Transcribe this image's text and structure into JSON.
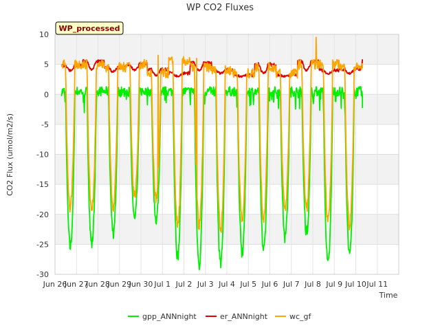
{
  "chart_data": {
    "type": "line",
    "title": "WP CO2 Fluxes",
    "xlabel": "Time",
    "ylabel": "CO2 Flux (umol/m2/s)",
    "badge": "WP_processed",
    "grid": true,
    "legend_position": "bottom-center",
    "xlim": [
      0,
      16
    ],
    "ylim": [
      -30,
      10
    ],
    "yticks": [
      10,
      5,
      0,
      -5,
      -10,
      -15,
      -20,
      -25,
      -30
    ],
    "xticks": [
      {
        "value": 0,
        "label": "Jun 26"
      },
      {
        "value": 1,
        "label": "Jun 27"
      },
      {
        "value": 2,
        "label": "Jun 28"
      },
      {
        "value": 3,
        "label": "Jun 29"
      },
      {
        "value": 4,
        "label": "Jun 30"
      },
      {
        "value": 5,
        "label": "Jul 1"
      },
      {
        "value": 6,
        "label": "Jul 2"
      },
      {
        "value": 7,
        "label": "Jul 3"
      },
      {
        "value": 8,
        "label": "Jul 4"
      },
      {
        "value": 9,
        "label": "Jul 5"
      },
      {
        "value": 10,
        "label": "Jul 6"
      },
      {
        "value": 11,
        "label": "Jul 7"
      },
      {
        "value": 12,
        "label": "Jul 8"
      },
      {
        "value": 13,
        "label": "Jul 9"
      },
      {
        "value": 14,
        "label": "Jul 10"
      },
      {
        "value": 15,
        "label": "Jul 11"
      }
    ],
    "day_starts": [
      0.3,
      1.3,
      2.3,
      3.3,
      4.3,
      5.3,
      6.3,
      7.3,
      8.3,
      9.3,
      10.3,
      11.3,
      12.3,
      13.3,
      14.3
    ],
    "series": [
      {
        "name": "gpp_ANNnight",
        "color": "#00ee00",
        "night_values": [
          0.5,
          0.5,
          0.5,
          0.5,
          0.5,
          0.5,
          0.5,
          0.5,
          0.5,
          0.5,
          0.5,
          0.5,
          0.5,
          0.5,
          -0.5
        ],
        "daily_minimums": [
          -25.5,
          -25.0,
          -23.0,
          -21.0,
          -21.0,
          -27.0,
          -28.5,
          -28.5,
          -26.5,
          -26.0,
          -24.0,
          -23.0,
          -28.5,
          -27.0,
          -1.0
        ]
      },
      {
        "name": "er_ANNnight",
        "color": "#dd0000",
        "night_values": [
          4.8,
          5.5,
          4.5,
          5.0,
          4.2,
          3.5,
          5.2,
          4.0,
          3.2,
          5.0,
          3.2,
          5.5,
          4.0,
          4.2,
          5.5
        ],
        "daily_minimums": [
          4.0,
          4.2,
          3.8,
          4.0,
          3.2,
          3.0,
          4.0,
          3.5,
          3.0,
          3.5,
          3.0,
          4.0,
          3.5,
          3.5,
          4.5
        ]
      },
      {
        "name": "wc_gf",
        "color": "#ffa500",
        "night_values": [
          5.0,
          5.0,
          4.5,
          5.0,
          3.5,
          5.5,
          4.5,
          4.0,
          3.5,
          4.5,
          3.5,
          5.0,
          5.0,
          4.5,
          4.5
        ],
        "daily_minimums": [
          -19.0,
          -19.5,
          -18.5,
          -17.0,
          -17.5,
          -22.0,
          -22.0,
          -22.5,
          -21.0,
          -20.5,
          -19.0,
          -19.0,
          -21.0,
          -22.0,
          4.0
        ],
        "spikes": [
          {
            "x": 12.15,
            "y": 9.5
          },
          {
            "x": 4.8,
            "y": 6.5
          },
          {
            "x": 6.6,
            "y": 6.0
          }
        ]
      }
    ]
  }
}
